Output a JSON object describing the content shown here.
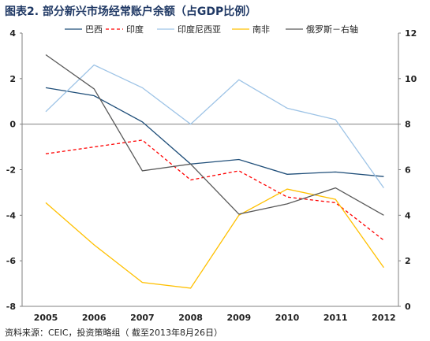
{
  "title": "图表2. 部分新兴市场经常账户余额（占GDP比例）",
  "source": "资料来源：CEIC，投资策略组（ 截至2013年8月26日）",
  "chart_data": {
    "type": "line",
    "title": "图表2. 部分新兴市场经常账户余额（占GDP比例）",
    "categories": [
      "2005",
      "2006",
      "2007",
      "2008",
      "2009",
      "2010",
      "2011",
      "2012"
    ],
    "ylim_left": [
      -8,
      4
    ],
    "yticks_left": [
      -8,
      -6,
      -4,
      -2,
      0,
      2,
      4
    ],
    "ylim_right": [
      0,
      12
    ],
    "yticks_right": [
      0,
      2,
      4,
      6,
      8,
      10,
      12
    ],
    "legend_position": "top",
    "series": [
      {
        "name": "巴西",
        "axis": "left",
        "color": "#1f4e79",
        "dash": "solid",
        "values": [
          1.6,
          1.25,
          0.1,
          -1.75,
          -1.55,
          -2.2,
          -2.1,
          -2.3
        ]
      },
      {
        "name": "印度",
        "axis": "left",
        "color": "#ff0000",
        "dash": "dashed",
        "values": [
          -1.3,
          -1.0,
          -0.7,
          -2.45,
          -2.05,
          -3.2,
          -3.45,
          -5.1
        ]
      },
      {
        "name": "印度尼西亚",
        "axis": "left",
        "color": "#9dc3e6",
        "dash": "solid",
        "values": [
          0.55,
          2.6,
          1.6,
          0.0,
          1.95,
          0.7,
          0.2,
          -2.8
        ]
      },
      {
        "name": "南非",
        "axis": "left",
        "color": "#ffc000",
        "dash": "solid",
        "values": [
          -3.45,
          -5.3,
          -6.95,
          -7.2,
          -4.0,
          -2.85,
          -3.3,
          -6.3
        ]
      },
      {
        "name": "俄罗斯－右轴",
        "axis": "right",
        "color": "#595959",
        "dash": "solid",
        "values": [
          11.05,
          9.55,
          5.95,
          6.25,
          4.05,
          4.5,
          5.2,
          4.0
        ]
      }
    ]
  }
}
